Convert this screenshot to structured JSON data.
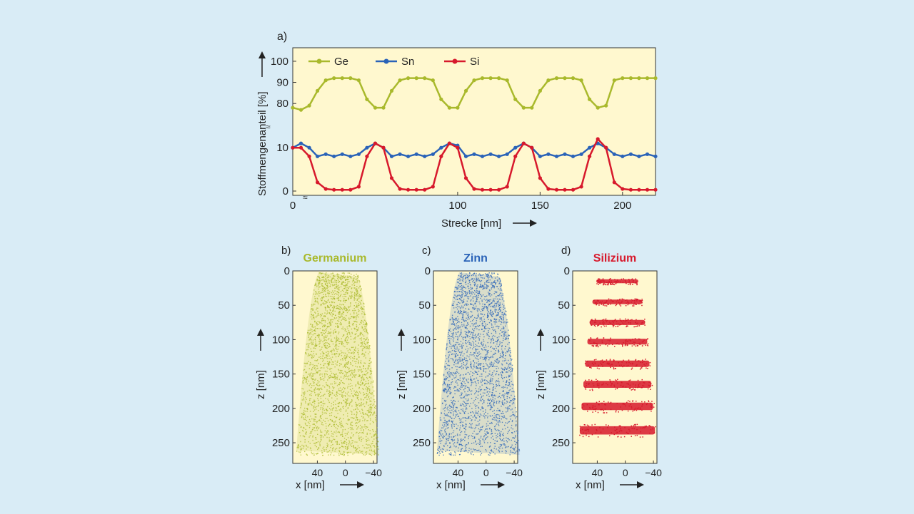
{
  "colors": {
    "background": "#d9ecf6",
    "plot_fill": "#fff8cf",
    "ge": "#a9b92c",
    "sn": "#2a63b8",
    "si": "#d7192c"
  },
  "chart_data": [
    {
      "panel": "a)",
      "type": "line",
      "xlabel": "Strecke [nm]",
      "ylabel": "Stoffmengenanteil [%]",
      "xlim": [
        0,
        220
      ],
      "xticks": [
        "0",
        "100",
        "150",
        "200"
      ],
      "xtick_values": [
        0,
        100,
        150,
        200
      ],
      "yticks_upper": [
        "80",
        "90",
        "100"
      ],
      "yticks_lower": [
        "0",
        "10"
      ],
      "axis_break": true,
      "legend_position": "top",
      "series": [
        {
          "name": "Ge",
          "x": [
            0,
            5,
            10,
            15,
            20,
            25,
            30,
            35,
            40,
            45,
            50,
            55,
            60,
            65,
            70,
            75,
            80,
            85,
            90,
            95,
            100,
            105,
            110,
            115,
            120,
            125,
            130,
            135,
            140,
            145,
            150,
            155,
            160,
            165,
            170,
            175,
            180,
            185,
            190,
            195,
            200,
            205,
            210,
            215,
            220
          ],
          "values": [
            78,
            77,
            79,
            86,
            91,
            92,
            92,
            92,
            91,
            82,
            78,
            78,
            86,
            91,
            92,
            92,
            92,
            91,
            82,
            78,
            78,
            86,
            91,
            92,
            92,
            92,
            91,
            82,
            78,
            78,
            86,
            91,
            92,
            92,
            92,
            91,
            82,
            78,
            79,
            91,
            92,
            92,
            92,
            92,
            92
          ]
        },
        {
          "name": "Sn",
          "x": [
            0,
            5,
            10,
            15,
            20,
            25,
            30,
            35,
            40,
            45,
            50,
            55,
            60,
            65,
            70,
            75,
            80,
            85,
            90,
            95,
            100,
            105,
            110,
            115,
            120,
            125,
            130,
            135,
            140,
            145,
            150,
            155,
            160,
            165,
            170,
            175,
            180,
            185,
            190,
            195,
            200,
            205,
            210,
            215,
            220
          ],
          "values": [
            10,
            11,
            10,
            8,
            8.5,
            8,
            8.5,
            8,
            8.5,
            10,
            11,
            10,
            8,
            8.5,
            8,
            8.5,
            8,
            8.5,
            10,
            11,
            10.5,
            8,
            8.5,
            8,
            8.5,
            8,
            8.5,
            10,
            11,
            10,
            8,
            8.5,
            8,
            8.5,
            8,
            8.5,
            10,
            11,
            10,
            8.5,
            8,
            8.5,
            8,
            8.5,
            8
          ]
        },
        {
          "name": "Si",
          "x": [
            0,
            5,
            10,
            15,
            20,
            25,
            30,
            35,
            40,
            45,
            50,
            55,
            60,
            65,
            70,
            75,
            80,
            85,
            90,
            95,
            100,
            105,
            110,
            115,
            120,
            125,
            130,
            135,
            140,
            145,
            150,
            155,
            160,
            165,
            170,
            175,
            180,
            185,
            190,
            195,
            200,
            205,
            210,
            215,
            220
          ],
          "values": [
            10,
            10,
            8,
            2,
            0.5,
            0.3,
            0.3,
            0.3,
            1,
            8,
            11,
            10,
            3,
            0.5,
            0.3,
            0.3,
            0.3,
            1,
            8,
            11,
            10,
            3,
            0.5,
            0.3,
            0.3,
            0.3,
            1,
            8,
            11,
            10,
            3,
            0.5,
            0.3,
            0.3,
            0.3,
            1,
            8,
            12,
            10,
            2,
            0.5,
            0.3,
            0.3,
            0.3,
            0.3
          ]
        }
      ]
    },
    {
      "panel": "b)",
      "type": "scatter",
      "title": "Germanium",
      "xlabel": "x [nm]",
      "ylabel": "z [nm]",
      "xticks": [
        "40",
        "0",
        "−40"
      ],
      "yticks": [
        "0",
        "50",
        "100",
        "150",
        "200",
        "250"
      ],
      "xlim": [
        75,
        -45
      ],
      "ylim": [
        0,
        280
      ],
      "distribution": "uniform",
      "stripe_centers_z": []
    },
    {
      "panel": "c)",
      "type": "scatter",
      "title": "Zinn",
      "xlabel": "x [nm]",
      "ylabel": "z [nm]",
      "xticks": [
        "40",
        "0",
        "−40"
      ],
      "yticks": [
        "0",
        "50",
        "100",
        "150",
        "200",
        "250"
      ],
      "xlim": [
        75,
        -45
      ],
      "ylim": [
        0,
        280
      ],
      "distribution": "uniform",
      "stripe_centers_z": []
    },
    {
      "panel": "d)",
      "type": "scatter",
      "title": "Silizium",
      "xlabel": "x [nm]",
      "ylabel": "z [nm]",
      "xticks": [
        "40",
        "0",
        "−40"
      ],
      "yticks": [
        "0",
        "50",
        "100",
        "150",
        "200",
        "250"
      ],
      "xlim": [
        75,
        -45
      ],
      "ylim": [
        0,
        280
      ],
      "distribution": "stripes",
      "stripe_centers_z": [
        15,
        45,
        75,
        103,
        135,
        165,
        197,
        232
      ]
    }
  ]
}
